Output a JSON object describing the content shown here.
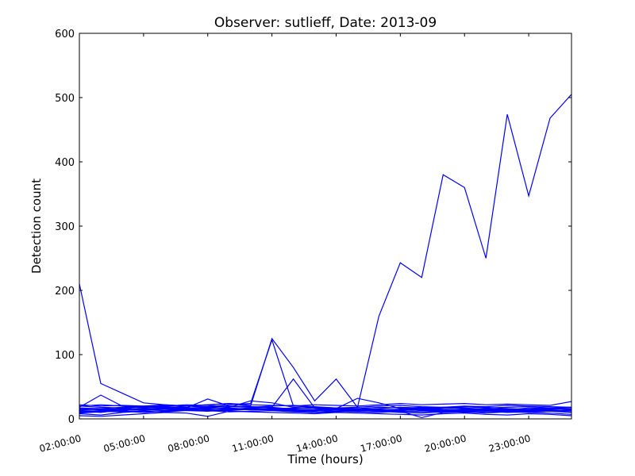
{
  "chart_data": {
    "type": "line",
    "title": "Observer: sutlieff, Date: 2013-09",
    "xlabel": "Time (hours)",
    "ylabel": "Detection count",
    "x_ticks": [
      "02:00:00",
      "05:00:00",
      "08:00:00",
      "11:00:00",
      "14:00:00",
      "17:00:00",
      "20:00:00",
      "23:00:00"
    ],
    "y_ticks": [
      0,
      100,
      200,
      300,
      400,
      500,
      600
    ],
    "xlim_hours": [
      2,
      25
    ],
    "ylim": [
      0,
      600
    ],
    "line_color": "#0000ff",
    "grid": false,
    "legend": "none",
    "x_hours": [
      2,
      3,
      4,
      5,
      6,
      7,
      8,
      9,
      10,
      11,
      12,
      13,
      14,
      15,
      16,
      17,
      18,
      19,
      20,
      21,
      22,
      23,
      24,
      25
    ],
    "series": [
      {
        "values": [
          210,
          55,
          40,
          25,
          22,
          20,
          18,
          16,
          15,
          16,
          14,
          13,
          12,
          14,
          13,
          12,
          11,
          12,
          10,
          11,
          12,
          13,
          12,
          11
        ]
      },
      {
        "values": [
          15,
          14,
          16,
          18,
          17,
          20,
          22,
          24,
          20,
          125,
          80,
          28,
          62,
          18,
          160,
          243,
          220,
          380,
          360,
          250,
          474,
          347,
          468,
          505
        ]
      },
      {
        "values": [
          20,
          22,
          20,
          18,
          21,
          20,
          19,
          22,
          24,
          123,
          20,
          18,
          16,
          15,
          14,
          13,
          15,
          17,
          16,
          14,
          13,
          15,
          14,
          13
        ]
      },
      {
        "values": [
          18,
          37,
          20,
          19,
          18,
          17,
          31,
          20,
          19,
          18,
          62,
          17,
          16,
          32,
          25,
          16,
          18,
          17,
          19,
          18,
          16,
          15,
          17,
          18
        ]
      },
      {
        "values": [
          12,
          10,
          14,
          16,
          15,
          14,
          16,
          18,
          28,
          25,
          18,
          16,
          14,
          12,
          14,
          15,
          14,
          13,
          15,
          14,
          13,
          14,
          15,
          16
        ]
      },
      {
        "values": [
          10,
          12,
          13,
          15,
          17,
          16,
          15,
          14,
          16,
          15,
          14,
          13,
          15,
          14,
          16,
          18,
          17,
          15,
          14,
          16,
          15,
          14,
          16,
          15
        ]
      },
      {
        "values": [
          14,
          15,
          16,
          14,
          13,
          15,
          17,
          16,
          14,
          15,
          17,
          16,
          15,
          13,
          14,
          15,
          16,
          14,
          13,
          15,
          16,
          14,
          13,
          14
        ]
      },
      {
        "values": [
          16,
          14,
          12,
          17,
          19,
          18,
          14,
          15,
          17,
          18,
          15,
          14,
          17,
          16,
          15,
          13,
          15,
          18,
          17,
          15,
          14,
          17,
          16,
          15
        ]
      },
      {
        "values": [
          8,
          6,
          10,
          12,
          11,
          13,
          12,
          17,
          15,
          14,
          12,
          10,
          11,
          13,
          12,
          10,
          9,
          11,
          13,
          12,
          10,
          11,
          12,
          10
        ]
      },
      {
        "values": [
          20,
          18,
          17,
          19,
          20,
          22,
          21,
          19,
          18,
          20,
          21,
          19,
          17,
          18,
          20,
          21,
          19,
          18,
          20,
          19,
          21,
          20,
          19,
          18
        ]
      },
      {
        "values": [
          5,
          4,
          6,
          8,
          10,
          9,
          4,
          12,
          11,
          10,
          9,
          8,
          10,
          9,
          8,
          7,
          6,
          8,
          9,
          7,
          6,
          8,
          7,
          5
        ]
      },
      {
        "values": [
          22,
          20,
          21,
          20,
          22,
          20,
          22,
          24,
          22,
          21,
          20,
          22,
          21,
          20,
          22,
          24,
          22,
          23,
          24,
          22,
          23,
          22,
          21,
          27
        ]
      },
      {
        "values": [
          11,
          13,
          15,
          14,
          16,
          15,
          13,
          14,
          16,
          15,
          13,
          12,
          14,
          13,
          12,
          14,
          15,
          13,
          12,
          14,
          13,
          12,
          13,
          14
        ]
      },
      {
        "values": [
          17,
          16,
          18,
          20,
          19,
          17,
          18,
          20,
          19,
          17,
          16,
          18,
          17,
          16,
          18,
          17,
          16,
          18,
          19,
          17,
          18,
          19,
          17,
          16
        ]
      },
      {
        "values": [
          13,
          12,
          11,
          13,
          15,
          14,
          12,
          13,
          15,
          14,
          13,
          12,
          14,
          13,
          12,
          11,
          13,
          12,
          11,
          13,
          12,
          11,
          12,
          13
        ]
      },
      {
        "values": [
          9,
          11,
          12,
          10,
          12,
          14,
          13,
          11,
          12,
          13,
          11,
          10,
          12,
          11,
          10,
          12,
          2,
          10,
          11,
          9,
          11,
          10,
          9,
          7
        ]
      }
    ]
  }
}
